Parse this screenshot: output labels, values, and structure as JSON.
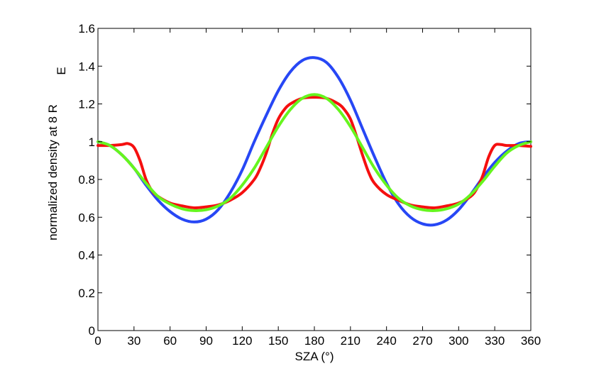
{
  "chart_data": {
    "type": "line",
    "xlabel": "SZA (°)",
    "ylabel": {
      "main": "normalized density at 8 R",
      "subscript": "E"
    },
    "xlim": [
      0,
      360
    ],
    "ylim": [
      0,
      1.6
    ],
    "xticks": [
      0,
      30,
      60,
      90,
      120,
      150,
      180,
      210,
      240,
      270,
      300,
      330,
      360
    ],
    "yticks": [
      0,
      0.2,
      0.4,
      0.6,
      0.8,
      1,
      1.2,
      1.4,
      1.6
    ],
    "ytick_labels": [
      "0",
      "0.2",
      "0.4",
      "0.6",
      "0.8",
      "1",
      "1.2",
      "1.4",
      "1.6"
    ],
    "grid": false,
    "series": [
      {
        "color": "#2747f5",
        "x": [
          0,
          10,
          20,
          30,
          40,
          50,
          60,
          70,
          80,
          90,
          100,
          110,
          120,
          130,
          140,
          150,
          160,
          170,
          180,
          190,
          200,
          210,
          220,
          230,
          240,
          250,
          260,
          270,
          280,
          290,
          300,
          310,
          320,
          330,
          340,
          350,
          360
        ],
        "y": [
          1.0,
          0.98,
          0.93,
          0.86,
          0.77,
          0.69,
          0.63,
          0.59,
          0.575,
          0.59,
          0.64,
          0.73,
          0.85,
          1.0,
          1.14,
          1.27,
          1.37,
          1.43,
          1.445,
          1.42,
          1.34,
          1.22,
          1.07,
          0.92,
          0.78,
          0.67,
          0.6,
          0.565,
          0.56,
          0.585,
          0.64,
          0.72,
          0.81,
          0.89,
          0.95,
          0.99,
          1.0
        ]
      },
      {
        "color": "#f50f0f",
        "x": [
          0,
          10,
          20,
          25,
          30,
          35,
          40,
          45,
          50,
          60,
          70,
          80,
          90,
          100,
          110,
          120,
          130,
          135,
          140,
          145,
          150,
          155,
          160,
          170,
          180,
          190,
          200,
          205,
          210,
          215,
          220,
          225,
          230,
          240,
          250,
          260,
          270,
          280,
          290,
          300,
          310,
          315,
          320,
          325,
          330,
          335,
          340,
          350,
          360
        ],
        "y": [
          0.98,
          0.98,
          0.985,
          0.99,
          0.97,
          0.9,
          0.8,
          0.74,
          0.71,
          0.675,
          0.66,
          0.65,
          0.655,
          0.665,
          0.69,
          0.73,
          0.8,
          0.86,
          0.94,
          1.04,
          1.12,
          1.17,
          1.2,
          1.23,
          1.235,
          1.23,
          1.2,
          1.17,
          1.12,
          1.03,
          0.93,
          0.84,
          0.78,
          0.72,
          0.69,
          0.665,
          0.655,
          0.65,
          0.66,
          0.675,
          0.71,
          0.75,
          0.82,
          0.92,
          0.98,
          0.985,
          0.98,
          0.98,
          0.975
        ]
      },
      {
        "color": "#66f51e",
        "x": [
          0,
          10,
          20,
          30,
          40,
          50,
          60,
          70,
          80,
          90,
          100,
          110,
          120,
          130,
          140,
          150,
          160,
          170,
          180,
          190,
          200,
          210,
          220,
          230,
          240,
          250,
          260,
          270,
          280,
          290,
          300,
          310,
          320,
          330,
          340,
          350,
          360
        ],
        "y": [
          1.0,
          0.98,
          0.93,
          0.86,
          0.78,
          0.71,
          0.67,
          0.645,
          0.635,
          0.64,
          0.66,
          0.7,
          0.77,
          0.86,
          0.97,
          1.08,
          1.17,
          1.23,
          1.25,
          1.23,
          1.17,
          1.08,
          0.97,
          0.86,
          0.77,
          0.7,
          0.66,
          0.64,
          0.635,
          0.645,
          0.67,
          0.72,
          0.79,
          0.87,
          0.94,
          0.98,
          1.0
        ]
      }
    ]
  }
}
